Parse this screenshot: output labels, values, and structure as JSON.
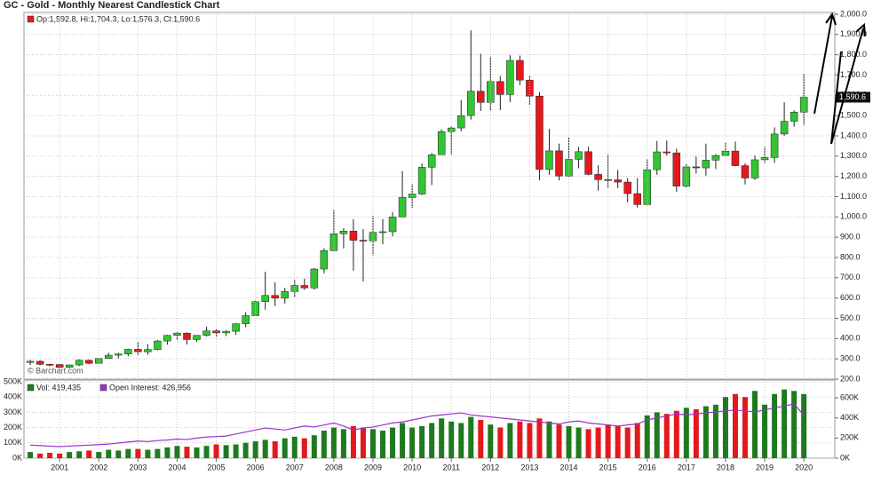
{
  "chart_data": [
    {
      "type": "candlestick",
      "title": "GC - Gold - Monthly Nearest Candlestick Chart",
      "header": "Op:1,592.8, Hi:1,704.3, Lo:1,576.3, Cl:1,590.6",
      "last_label": "1,590.6",
      "watermark": "© Barchart.com",
      "up_color": "#33c433",
      "down_color": "#e3191e",
      "x": [
        2000.25,
        2000.5,
        2000.75,
        2001,
        2001.25,
        2001.5,
        2001.75,
        2002,
        2002.25,
        2002.5,
        2002.75,
        2003,
        2003.25,
        2003.5,
        2003.75,
        2004,
        2004.25,
        2004.5,
        2004.75,
        2005,
        2005.25,
        2005.5,
        2005.75,
        2006,
        2006.25,
        2006.5,
        2006.75,
        2007,
        2007.25,
        2007.5,
        2007.75,
        2008,
        2008.25,
        2008.5,
        2008.75,
        2009,
        2009.25,
        2009.5,
        2009.75,
        2010,
        2010.25,
        2010.5,
        2010.75,
        2011,
        2011.25,
        2011.5,
        2011.75,
        2012,
        2012.25,
        2012.5,
        2012.75,
        2013,
        2013.25,
        2013.5,
        2013.75,
        2014,
        2014.25,
        2014.5,
        2014.75,
        2015,
        2015.25,
        2015.5,
        2015.75,
        2016,
        2016.25,
        2016.5,
        2016.75,
        2017,
        2017.25,
        2017.5,
        2017.75,
        2018,
        2018.25,
        2018.5,
        2018.75,
        2019,
        2019.25,
        2019.5,
        2019.75,
        2020
      ],
      "open": [
        282,
        288,
        273,
        272,
        258,
        270,
        293,
        278,
        302,
        318,
        324,
        347,
        335,
        346,
        388,
        416,
        427,
        395,
        416,
        438,
        428,
        436,
        473,
        513,
        582,
        613,
        599,
        632,
        662,
        650,
        743,
        834,
        917,
        930,
        885,
        882,
        924,
        927,
        1000,
        1096,
        1113,
        1245,
        1307,
        1421,
        1439,
        1500,
        1620,
        1565,
        1668,
        1604,
        1772,
        1675,
        1596,
        1234,
        1326,
        1202,
        1284,
        1322,
        1210,
        1184,
        1183,
        1172,
        1115,
        1061,
        1233,
        1321,
        1316,
        1152,
        1247,
        1242,
        1280,
        1303,
        1325,
        1253,
        1192,
        1282,
        1293,
        1409,
        1472,
        1517
      ],
      "high": [
        295,
        293,
        276,
        274,
        272,
        298,
        296,
        305,
        330,
        330,
        350,
        385,
        373,
        393,
        418,
        431,
        430,
        416,
        458,
        446,
        441,
        476,
        530,
        587,
        730,
        677,
        650,
        690,
        695,
        748,
        846,
        1033,
        945,
        988,
        940,
        1006,
        990,
        1024,
        1226,
        1162,
        1265,
        1315,
        1432,
        1447,
        1577,
        1920,
        1805,
        1791,
        1695,
        1798,
        1796,
        1698,
        1616,
        1434,
        1362,
        1392,
        1345,
        1346,
        1255,
        1308,
        1232,
        1192,
        1191,
        1284,
        1375,
        1377,
        1337,
        1264,
        1298,
        1362,
        1310,
        1366,
        1372,
        1265,
        1303,
        1347,
        1442,
        1566,
        1526,
        1704
      ],
      "low": [
        270,
        268,
        263,
        255,
        255,
        264,
        274,
        277,
        300,
        302,
        313,
        319,
        320,
        342,
        370,
        391,
        371,
        385,
        410,
        411,
        412,
        418,
        456,
        512,
        543,
        560,
        573,
        603,
        640,
        642,
        722,
        832,
        845,
        735,
        681,
        810,
        865,
        904,
        1000,
        1045,
        1108,
        1157,
        1308,
        1307,
        1422,
        1480,
        1523,
        1527,
        1527,
        1566,
        1650,
        1554,
        1180,
        1208,
        1180,
        1200,
        1240,
        1206,
        1130,
        1141,
        1142,
        1072,
        1046,
        1061,
        1208,
        1302,
        1124,
        1146,
        1214,
        1204,
        1236,
        1302,
        1250,
        1160,
        1182,
        1266,
        1267,
        1400,
        1445,
        1453
      ],
      "close": [
        288,
        273,
        272,
        258,
        270,
        293,
        278,
        302,
        318,
        324,
        347,
        335,
        346,
        388,
        416,
        427,
        395,
        416,
        438,
        428,
        436,
        473,
        513,
        582,
        613,
        599,
        632,
        662,
        650,
        743,
        834,
        917,
        930,
        885,
        882,
        924,
        927,
        1000,
        1096,
        1113,
        1245,
        1307,
        1421,
        1439,
        1500,
        1620,
        1565,
        1668,
        1604,
        1772,
        1675,
        1596,
        1234,
        1326,
        1202,
        1284,
        1322,
        1210,
        1184,
        1183,
        1172,
        1115,
        1061,
        1233,
        1321,
        1316,
        1152,
        1247,
        1242,
        1280,
        1303,
        1325,
        1253,
        1192,
        1282,
        1293,
        1409,
        1472,
        1517,
        1590.6
      ],
      "xlim": [
        2000.09,
        2020.79
      ],
      "ylim": [
        200,
        2000
      ],
      "yticks": [
        {
          "value": 200,
          "label": "200.0"
        },
        {
          "value": 300,
          "label": "300.0"
        },
        {
          "value": 400,
          "label": "400.0"
        },
        {
          "value": 500,
          "label": "500.0"
        },
        {
          "value": 600,
          "label": "600.0"
        },
        {
          "value": 700,
          "label": "700.0"
        },
        {
          "value": 800,
          "label": "800.0"
        },
        {
          "value": 900,
          "label": "900.0"
        },
        {
          "value": 1000,
          "label": "1,000.0"
        },
        {
          "value": 1100,
          "label": "1,100.0"
        },
        {
          "value": 1200,
          "label": "1,200.0"
        },
        {
          "value": 1300,
          "label": "1,300.0"
        },
        {
          "value": 1400,
          "label": "1,400.0"
        },
        {
          "value": 1500,
          "label": "1,500.0"
        },
        {
          "value": 1600,
          "label": "1,600.0"
        },
        {
          "value": 1700,
          "label": "1,700.0"
        },
        {
          "value": 1800,
          "label": "1,800.0"
        },
        {
          "value": 1900,
          "label": "1,900.0"
        },
        {
          "value": 2000,
          "label": "2,000.0"
        }
      ],
      "grid": true
    },
    {
      "type": "volume",
      "xticks": [
        2001,
        2002,
        2003,
        2004,
        2005,
        2006,
        2007,
        2008,
        2009,
        2010,
        2011,
        2012,
        2013,
        2014,
        2015,
        2016,
        2017,
        2018,
        2019,
        2020
      ],
      "series": [
        {
          "name": "Vol: 419,435",
          "color": "#1f7a1f",
          "values": [
            40000,
            30000,
            35000,
            30000,
            40000,
            45000,
            50000,
            40000,
            55000,
            50000,
            60000,
            60000,
            55000,
            60000,
            70000,
            80000,
            75000,
            70000,
            80000,
            90000,
            85000,
            90000,
            100000,
            110000,
            120000,
            110000,
            130000,
            140000,
            130000,
            150000,
            180000,
            200000,
            190000,
            210000,
            200000,
            190000,
            180000,
            200000,
            230000,
            200000,
            210000,
            230000,
            260000,
            240000,
            230000,
            270000,
            250000,
            220000,
            200000,
            230000,
            240000,
            230000,
            260000,
            240000,
            220000,
            210000,
            200000,
            190000,
            200000,
            220000,
            210000,
            200000,
            230000,
            280000,
            300000,
            290000,
            310000,
            330000,
            320000,
            340000,
            350000,
            400000,
            420000,
            400000,
            440000,
            350000,
            420000,
            450000,
            440000,
            419435
          ]
        },
        {
          "name": "Open Interest: 426,956",
          "color": "#9933cc",
          "axis": "y2",
          "values": [
            130000,
            125000,
            120000,
            115000,
            120000,
            125000,
            130000,
            135000,
            140000,
            150000,
            160000,
            170000,
            165000,
            175000,
            180000,
            190000,
            185000,
            200000,
            210000,
            215000,
            220000,
            240000,
            260000,
            280000,
            300000,
            290000,
            280000,
            300000,
            320000,
            310000,
            330000,
            350000,
            320000,
            280000,
            300000,
            310000,
            330000,
            350000,
            360000,
            380000,
            400000,
            420000,
            430000,
            440000,
            450000,
            430000,
            420000,
            410000,
            400000,
            390000,
            380000,
            370000,
            360000,
            350000,
            340000,
            360000,
            370000,
            350000,
            340000,
            330000,
            320000,
            330000,
            340000,
            380000,
            400000,
            420000,
            440000,
            430000,
            440000,
            450000,
            460000,
            470000,
            480000,
            470000,
            460000,
            480000,
            500000,
            520000,
            540000,
            426956
          ]
        }
      ],
      "ylim": [
        0,
        500000
      ],
      "yticks": [
        {
          "value": 0,
          "label": "0K"
        },
        {
          "value": 100000,
          "label": "100K"
        },
        {
          "value": 200000,
          "label": "200K"
        },
        {
          "value": 300000,
          "label": "300K"
        },
        {
          "value": 400000,
          "label": "400K"
        },
        {
          "value": 500000,
          "label": "500K"
        }
      ],
      "y2lim": [
        0,
        760000
      ],
      "y2ticks": [
        {
          "value": 0,
          "label": "0K"
        },
        {
          "value": 200000,
          "label": "200K"
        },
        {
          "value": 400000,
          "label": "400K"
        },
        {
          "value": 600000,
          "label": "600K"
        }
      ]
    }
  ]
}
